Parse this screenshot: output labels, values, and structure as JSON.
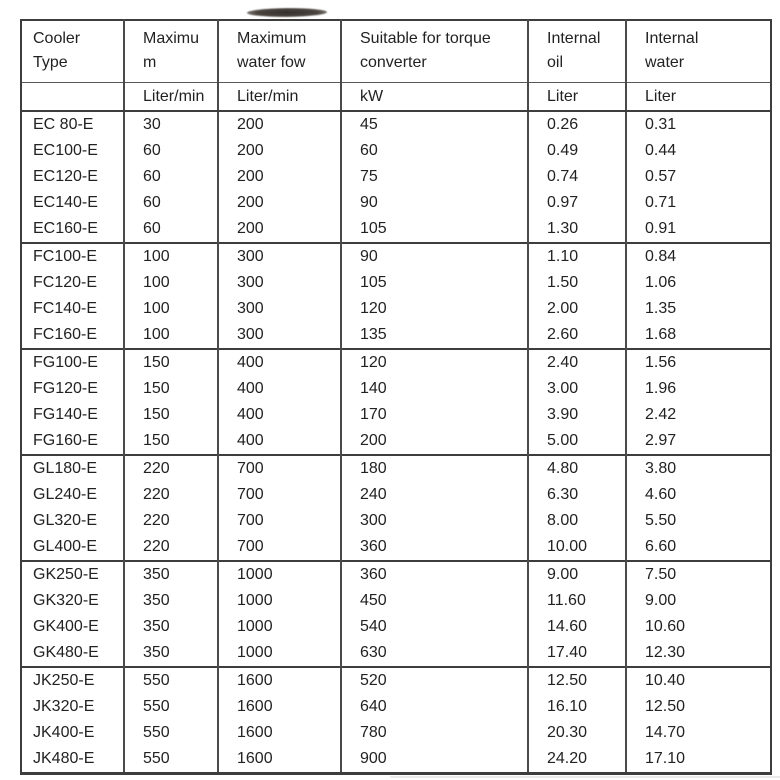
{
  "page": {
    "background": "#ffffff",
    "text_color": "#222222",
    "border_color": "#3d3d3d"
  },
  "artifact": {
    "name": "dark-scan-smudge",
    "color": "#3b3631"
  },
  "table": {
    "columns": [
      {
        "header": "Cooler\nType",
        "unit": ""
      },
      {
        "header": "Maximu\nm",
        "unit": "Liter/min"
      },
      {
        "header": "Maximum\nwater fow",
        "unit": "Liter/min"
      },
      {
        "header": "Suitable for torque\nconverter",
        "unit": "kW"
      },
      {
        "header": "Internal\noil",
        "unit": "Liter"
      },
      {
        "header": "Internal\nwater",
        "unit": "Liter"
      }
    ],
    "groups": [
      {
        "rows": [
          [
            "EC 80-E",
            "30",
            "200",
            "45",
            "0.26",
            "0.31"
          ],
          [
            "EC100-E",
            "60",
            "200",
            "60",
            "0.49",
            "0.44"
          ],
          [
            "EC120-E",
            "60",
            "200",
            "75",
            "0.74",
            "0.57"
          ],
          [
            "EC140-E",
            "60",
            "200",
            "90",
            "0.97",
            "0.71"
          ],
          [
            "EC160-E",
            "60",
            "200",
            "105",
            "1.30",
            "0.91"
          ]
        ]
      },
      {
        "rows": [
          [
            "FC100-E",
            "100",
            "300",
            "90",
            "1.10",
            "0.84"
          ],
          [
            "FC120-E",
            "100",
            "300",
            "105",
            "1.50",
            "1.06"
          ],
          [
            "FC140-E",
            "100",
            "300",
            "120",
            "2.00",
            "1.35"
          ],
          [
            "FC160-E",
            "100",
            "300",
            "135",
            "2.60",
            "1.68"
          ]
        ]
      },
      {
        "rows": [
          [
            "FG100-E",
            "150",
            "400",
            "120",
            "2.40",
            "1.56"
          ],
          [
            "FG120-E",
            "150",
            "400",
            "140",
            "3.00",
            "1.96"
          ],
          [
            "FG140-E",
            "150",
            "400",
            "170",
            "3.90",
            "2.42"
          ],
          [
            "FG160-E",
            "150",
            "400",
            "200",
            "5.00",
            "2.97"
          ]
        ]
      },
      {
        "rows": [
          [
            "GL180-E",
            "220",
            "700",
            "180",
            "4.80",
            "3.80"
          ],
          [
            "GL240-E",
            "220",
            "700",
            "240",
            "6.30",
            "4.60"
          ],
          [
            "GL320-E",
            "220",
            "700",
            "300",
            "8.00",
            "5.50"
          ],
          [
            "GL400-E",
            "220",
            "700",
            "360",
            "10.00",
            "6.60"
          ]
        ]
      },
      {
        "rows": [
          [
            "GK250-E",
            "350",
            "1000",
            "360",
            "9.00",
            "7.50"
          ],
          [
            "GK320-E",
            "350",
            "1000",
            "450",
            "11.60",
            "9.00"
          ],
          [
            "GK400-E",
            "350",
            "1000",
            "540",
            "14.60",
            "10.60"
          ],
          [
            "GK480-E",
            "350",
            "1000",
            "630",
            "17.40",
            "12.30"
          ]
        ]
      },
      {
        "rows": [
          [
            "JK250-E",
            "550",
            "1600",
            "520",
            "12.50",
            "10.40"
          ],
          [
            "JK320-E",
            "550",
            "1600",
            "640",
            "16.10",
            "12.50"
          ],
          [
            "JK400-E",
            "550",
            "1600",
            "780",
            "20.30",
            "14.70"
          ],
          [
            "JK480-E",
            "550",
            "1600",
            "900",
            "24.20",
            "17.10"
          ]
        ]
      }
    ]
  }
}
